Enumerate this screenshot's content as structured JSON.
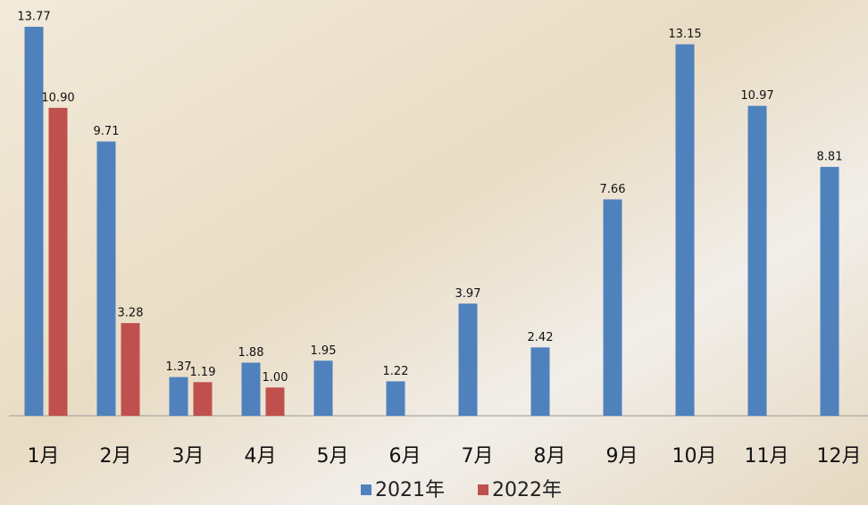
{
  "chart_data": {
    "type": "bar",
    "categories": [
      "1月",
      "2月",
      "3月",
      "4月",
      "5月",
      "6月",
      "7月",
      "8月",
      "9月",
      "10月",
      "11月",
      "12月"
    ],
    "series": [
      {
        "name": "2021年",
        "color": "#4f81bd",
        "values": [
          13.77,
          9.71,
          1.37,
          1.88,
          1.95,
          1.22,
          3.97,
          2.42,
          7.66,
          13.15,
          10.97,
          8.81
        ],
        "value_labels": [
          "13.77",
          "9.71",
          "1.37",
          "1.88",
          "1.95",
          "1.22",
          "3.97",
          "2.42",
          "7.66",
          "13.15",
          "10.97",
          "8.81"
        ]
      },
      {
        "name": "2022年",
        "color": "#c0504d",
        "values": [
          10.9,
          3.28,
          1.19,
          1.0,
          null,
          null,
          null,
          null,
          null,
          null,
          null,
          null
        ],
        "value_labels": [
          "10.90",
          "3.28",
          "1.19",
          "1.00",
          null,
          null,
          null,
          null,
          null,
          null,
          null,
          null
        ]
      }
    ],
    "legend": "bottom"
  }
}
